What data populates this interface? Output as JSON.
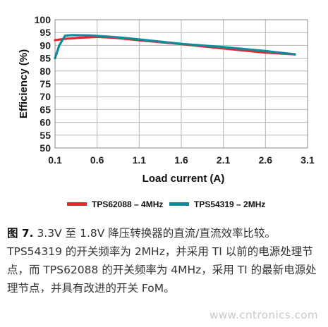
{
  "chart_data": {
    "type": "line",
    "xlabel": "Load current (A)",
    "ylabel": "Efficiency (%)",
    "xlim": [
      0.1,
      3.1
    ],
    "ylim": [
      50,
      100
    ],
    "x_ticks": [
      "0.1",
      "0.6",
      "1.1",
      "1.6",
      "2.1",
      "2.6",
      "3.1"
    ],
    "y_ticks": [
      "50",
      "55",
      "60",
      "65",
      "70",
      "75",
      "80",
      "85",
      "90",
      "95",
      "100"
    ],
    "grid": true,
    "legend_position": "bottom",
    "series": [
      {
        "name": "TPS62088 – 4MHz",
        "color": "#e8262a",
        "x": [
          0.1,
          0.2,
          0.4,
          0.6,
          0.8,
          1.1,
          1.6,
          2.1,
          2.6,
          2.95
        ],
        "y": [
          92,
          92.5,
          93,
          93.3,
          93,
          92,
          90.5,
          88.8,
          87.2,
          86.5
        ]
      },
      {
        "name": "TPS54319 – 2MHz",
        "color": "#0f8a9a",
        "x": [
          0.1,
          0.15,
          0.22,
          0.3,
          0.5,
          0.7,
          0.9,
          1.1,
          1.6,
          2.1,
          2.6,
          2.95
        ],
        "y": [
          85,
          90,
          93.8,
          94,
          93.9,
          93.5,
          93,
          92.3,
          90.6,
          89.3,
          87.8,
          86.5
        ]
      }
    ]
  },
  "caption": {
    "figure_label": "图 7.",
    "text": " 3.3V 至 1.8V 降压转换器的直流/直流效率比较。TPS54319 的开关频率为 2MHz，并采用 TI 以前的电源处理节点，而 TPS62088 的开关频率为 4MHz，采用 TI 的最新电源处理节点，并具有改进的开关 FoM。"
  },
  "watermark": "www.cntronics.com"
}
